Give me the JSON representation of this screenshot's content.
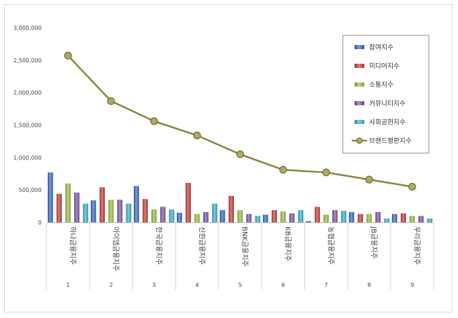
{
  "chart_data": {
    "type": "bar",
    "title": "",
    "xlabel": "",
    "ylabel": "",
    "ylim": [
      0,
      3000000
    ],
    "yticks": [
      "0",
      "500,000",
      "1,000,000",
      "1,500,000",
      "2,000,000",
      "2,500,000",
      "3,000,000"
    ],
    "category_numbers": [
      "1",
      "2",
      "3",
      "4",
      "5",
      "6",
      "7",
      "8",
      "9"
    ],
    "categories": [
      "하나금융지주",
      "아이엠금융지주",
      "한국금융지주",
      "신한금융지주",
      "BNK금융지주",
      "KB금융지주",
      "농협금융지주",
      "JB금융지주",
      "우리금융지주"
    ],
    "grid": false,
    "legend_position": "right",
    "series": [
      {
        "name": "참여지수",
        "kind": "bar",
        "color": "#3566c4",
        "values": [
          770000,
          340000,
          560000,
          150000,
          190000,
          120000,
          20000,
          160000,
          130000
        ]
      },
      {
        "name": "미디어지수",
        "kind": "bar",
        "color": "#c83a35",
        "values": [
          440000,
          540000,
          360000,
          610000,
          410000,
          190000,
          240000,
          130000,
          140000
        ]
      },
      {
        "name": "소통지수",
        "kind": "bar",
        "color": "#9bc03e",
        "values": [
          600000,
          350000,
          200000,
          130000,
          190000,
          170000,
          120000,
          130000,
          100000
        ]
      },
      {
        "name": "커뮤니티지수",
        "kind": "bar",
        "color": "#7b54a8",
        "values": [
          460000,
          350000,
          240000,
          160000,
          130000,
          140000,
          190000,
          160000,
          100000
        ]
      },
      {
        "name": "사회공헌지수",
        "kind": "bar",
        "color": "#35b3ce",
        "values": [
          290000,
          290000,
          200000,
          290000,
          100000,
          190000,
          180000,
          60000,
          60000
        ]
      },
      {
        "name": "브랜드평판지수",
        "kind": "line",
        "color": "#8b8743",
        "marker_color": "#b0a860",
        "values": [
          2570000,
          1870000,
          1560000,
          1340000,
          1050000,
          810000,
          770000,
          660000,
          550000
        ]
      }
    ]
  }
}
